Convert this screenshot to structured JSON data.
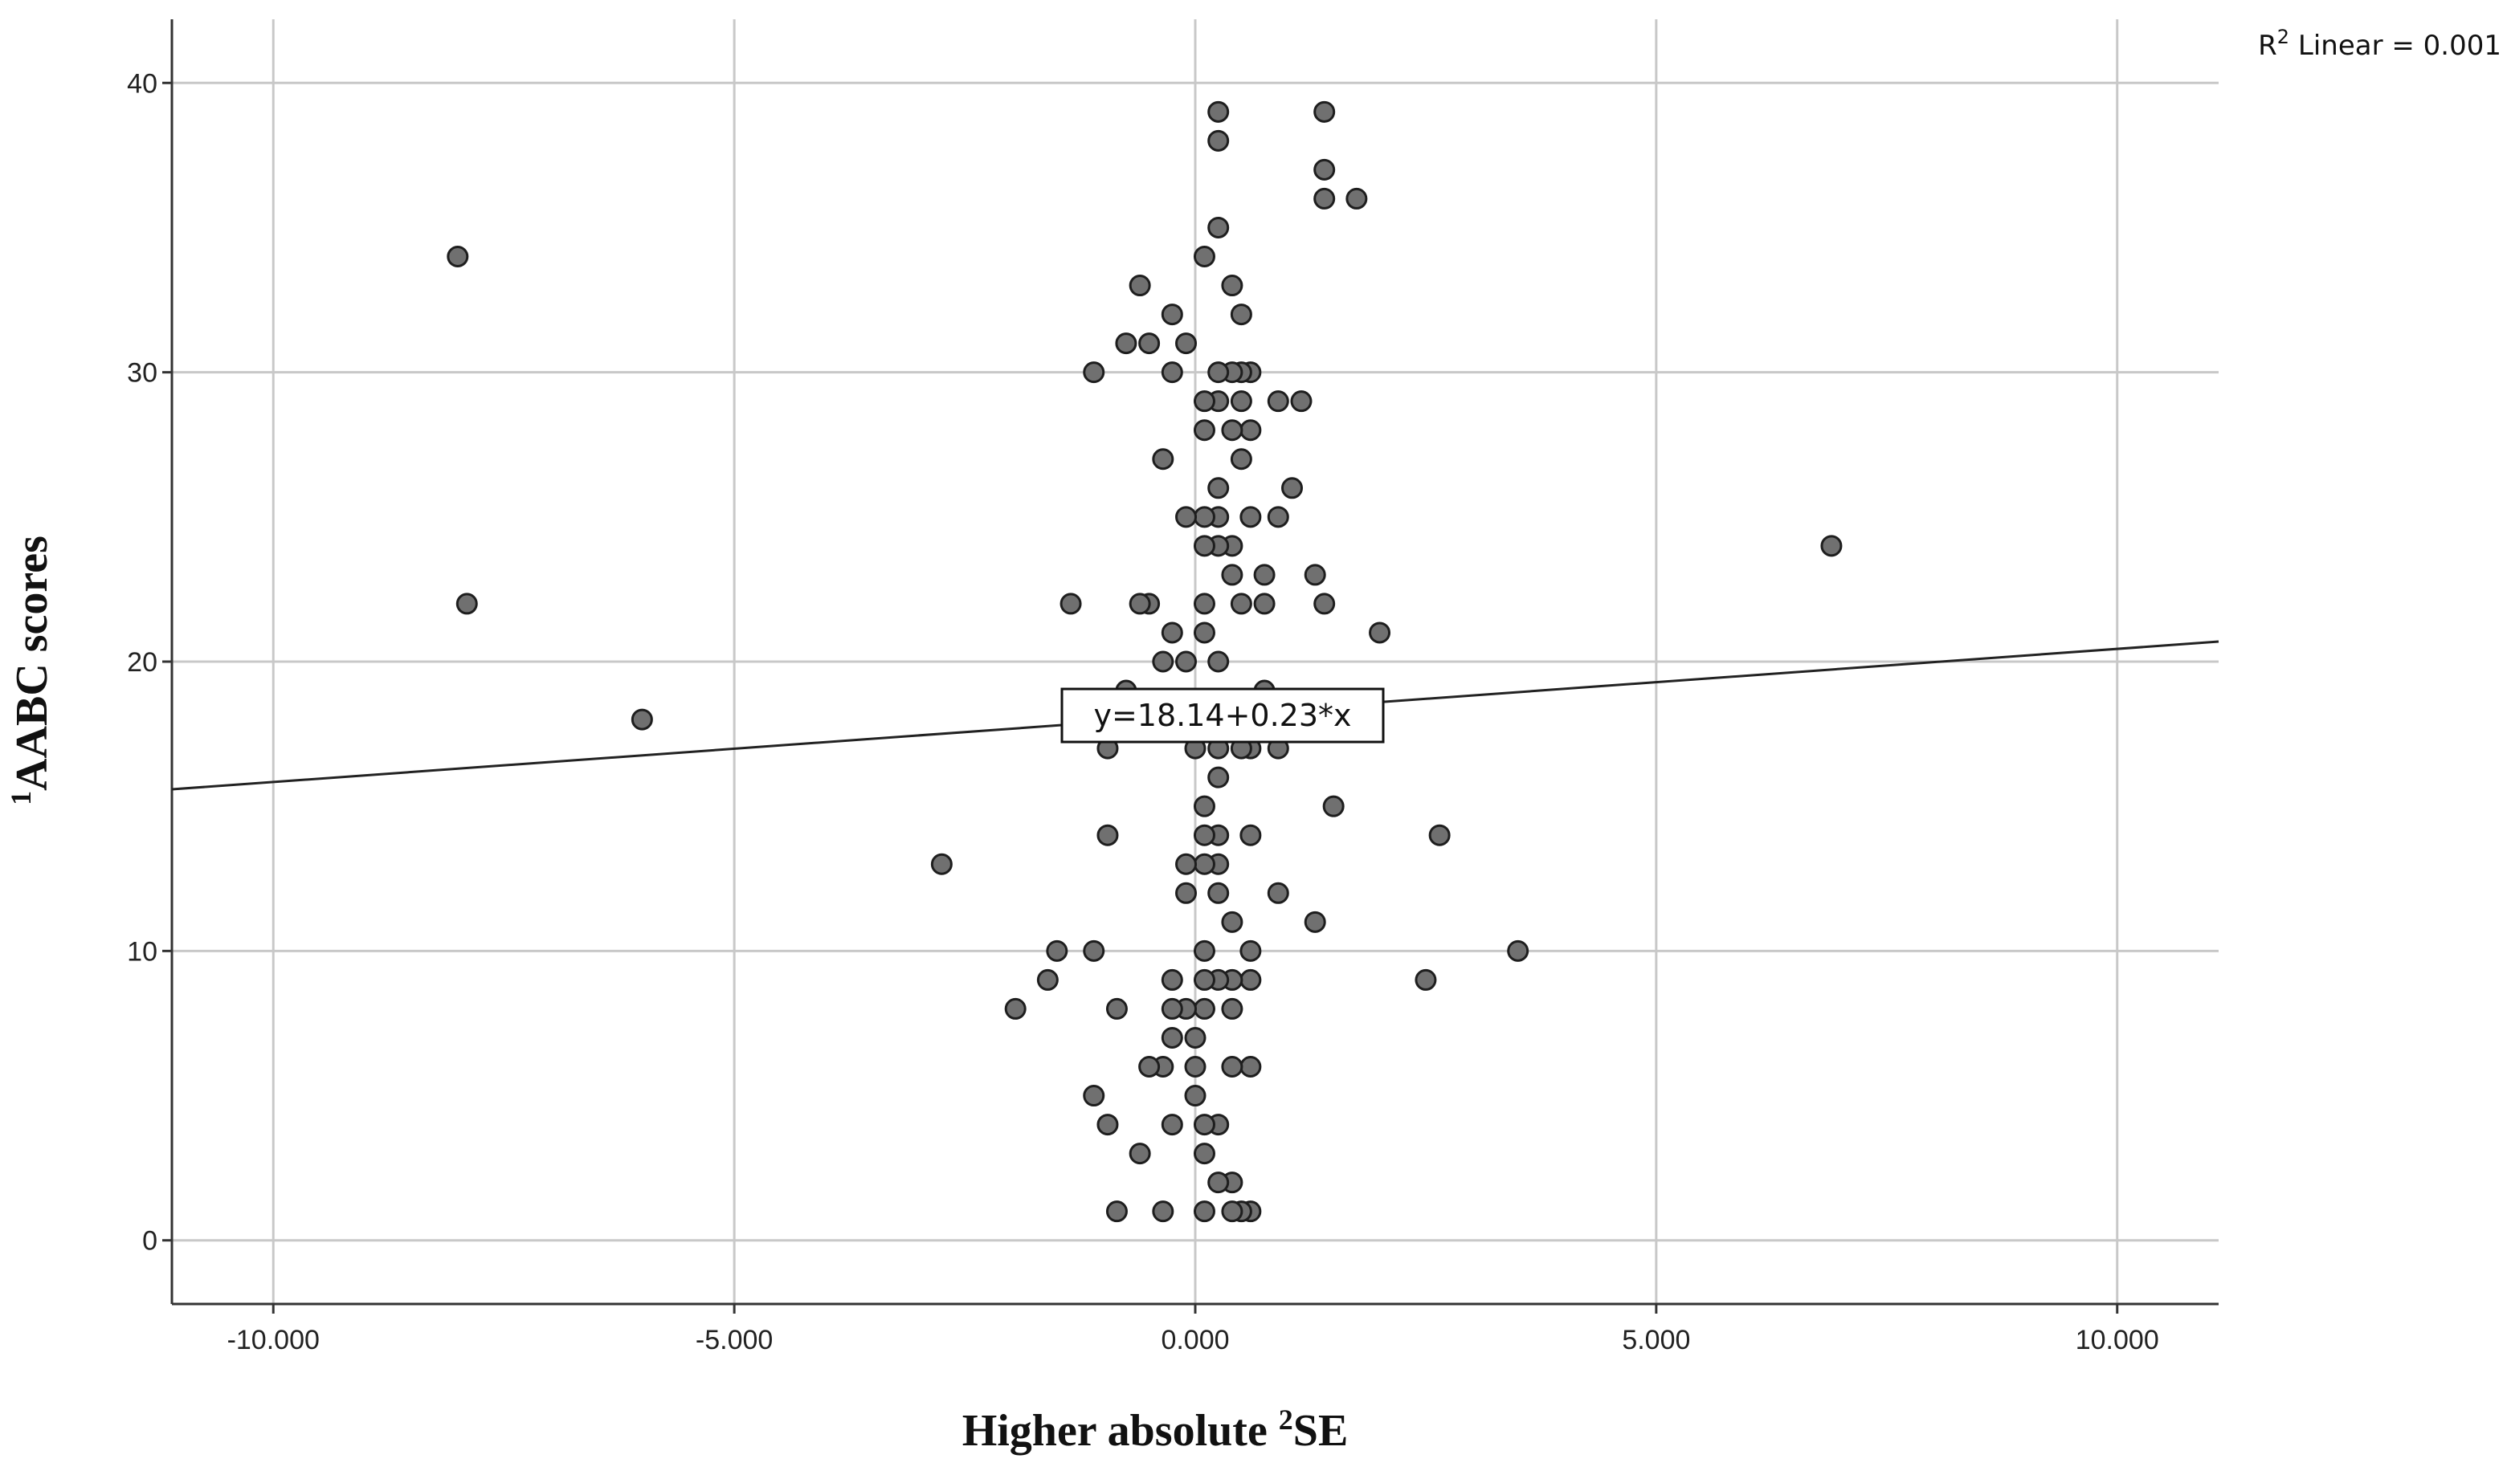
{
  "colors": {
    "point_fill": "#707070",
    "point_stroke": "#1e1e1e",
    "grid": "#c8c8c8",
    "axis": "#333333",
    "fit_line": "#222222"
  },
  "chart_data": {
    "type": "scatter",
    "title": "",
    "xlabel_main": "Higher absolute ",
    "xlabel_sup": "2",
    "xlabel_tail": "SE",
    "ylabel_sup": "1",
    "ylabel_main": "AABC scores",
    "xlim": [
      -11.1,
      11.1
    ],
    "ylim": [
      -2.2,
      42.2
    ],
    "x_ticks": [
      -10,
      -5,
      0,
      5,
      10
    ],
    "x_tick_labels": [
      "-10.000",
      "-5.000",
      "0.000",
      "5.000",
      "10.000"
    ],
    "y_ticks": [
      0,
      10,
      20,
      30,
      40
    ],
    "y_tick_labels": [
      "0",
      "10",
      "20",
      "30",
      "40"
    ],
    "grid": true,
    "fit_line": {
      "intercept": 18.14,
      "slope": 0.23,
      "equation_label": "y=18.14+0.23*x",
      "label_at_x": 0
    },
    "r2_label_prefix": "R",
    "r2_label_sup": "2",
    "r2_label_rest": " Linear = 0.001",
    "points": [
      [
        -8,
        34
      ],
      [
        -7.9,
        22
      ],
      [
        -6,
        18
      ],
      [
        -2.75,
        13
      ],
      [
        6.9,
        24
      ],
      [
        3.5,
        10
      ],
      [
        2.5,
        9
      ],
      [
        2.65,
        14
      ],
      [
        2,
        21
      ],
      [
        1.75,
        36
      ],
      [
        1.4,
        36
      ],
      [
        1.4,
        37
      ],
      [
        1.4,
        39
      ],
      [
        1.4,
        22
      ],
      [
        1.3,
        23
      ],
      [
        1.3,
        11
      ],
      [
        1.5,
        15
      ],
      [
        1.15,
        29
      ],
      [
        1.05,
        26
      ],
      [
        0.9,
        29
      ],
      [
        0.9,
        25
      ],
      [
        0.9,
        17
      ],
      [
        0.9,
        12
      ],
      [
        0.75,
        23
      ],
      [
        0.75,
        22
      ],
      [
        0.75,
        19
      ],
      [
        0.6,
        30
      ],
      [
        0.6,
        28
      ],
      [
        0.6,
        25
      ],
      [
        0.6,
        14
      ],
      [
        0.6,
        10
      ],
      [
        0.6,
        9
      ],
      [
        0.6,
        6
      ],
      [
        0.6,
        1
      ],
      [
        0.6,
        17
      ],
      [
        0.5,
        32
      ],
      [
        0.5,
        30
      ],
      [
        0.5,
        29
      ],
      [
        0.5,
        27
      ],
      [
        0.5,
        22
      ],
      [
        0.5,
        17
      ],
      [
        0.5,
        1
      ],
      [
        0.4,
        33
      ],
      [
        0.4,
        30
      ],
      [
        0.4,
        28
      ],
      [
        0.4,
        24
      ],
      [
        0.4,
        23
      ],
      [
        0.4,
        11
      ],
      [
        0.4,
        9
      ],
      [
        0.4,
        8
      ],
      [
        0.4,
        6
      ],
      [
        0.4,
        2
      ],
      [
        0.4,
        1
      ],
      [
        0.25,
        39
      ],
      [
        0.25,
        38
      ],
      [
        0.25,
        35
      ],
      [
        0.25,
        30
      ],
      [
        0.25,
        29
      ],
      [
        0.25,
        26
      ],
      [
        0.25,
        25
      ],
      [
        0.25,
        24
      ],
      [
        0.25,
        20
      ],
      [
        0.25,
        17
      ],
      [
        0.25,
        16
      ],
      [
        0.25,
        14
      ],
      [
        0.25,
        13
      ],
      [
        0.25,
        12
      ],
      [
        0.25,
        9
      ],
      [
        0.25,
        4
      ],
      [
        0.25,
        2
      ],
      [
        0.1,
        34
      ],
      [
        0.1,
        29
      ],
      [
        0.1,
        28
      ],
      [
        0.1,
        25
      ],
      [
        0.1,
        24
      ],
      [
        0.1,
        22
      ],
      [
        0.1,
        21
      ],
      [
        0.1,
        15
      ],
      [
        0.1,
        14
      ],
      [
        0.1,
        13
      ],
      [
        0.1,
        10
      ],
      [
        0.1,
        9
      ],
      [
        0.1,
        8
      ],
      [
        0.1,
        4
      ],
      [
        0.1,
        3
      ],
      [
        0.1,
        1
      ],
      [
        0,
        17
      ],
      [
        0,
        7
      ],
      [
        0,
        6
      ],
      [
        0,
        5
      ],
      [
        -0.1,
        31
      ],
      [
        -0.1,
        25
      ],
      [
        -0.1,
        20
      ],
      [
        -0.1,
        13
      ],
      [
        -0.1,
        12
      ],
      [
        -0.1,
        8
      ],
      [
        -0.25,
        32
      ],
      [
        -0.25,
        30
      ],
      [
        -0.25,
        21
      ],
      [
        -0.25,
        9
      ],
      [
        -0.25,
        8
      ],
      [
        -0.25,
        7
      ],
      [
        -0.25,
        4
      ],
      [
        -0.35,
        27
      ],
      [
        -0.35,
        20
      ],
      [
        -0.35,
        6
      ],
      [
        -0.35,
        1
      ],
      [
        -0.5,
        31
      ],
      [
        -0.5,
        22
      ],
      [
        -0.5,
        6
      ],
      [
        -0.6,
        33
      ],
      [
        -0.6,
        22
      ],
      [
        -0.6,
        3
      ],
      [
        -0.75,
        31
      ],
      [
        -0.75,
        19
      ],
      [
        -0.85,
        8
      ],
      [
        -0.85,
        1
      ],
      [
        -0.95,
        17
      ],
      [
        -0.95,
        14
      ],
      [
        -0.95,
        4
      ],
      [
        -1.1,
        30
      ],
      [
        -1.1,
        10
      ],
      [
        -1.1,
        5
      ],
      [
        -1.35,
        22
      ],
      [
        -1.5,
        10
      ],
      [
        -1.6,
        9
      ],
      [
        -1.95,
        8
      ]
    ]
  }
}
